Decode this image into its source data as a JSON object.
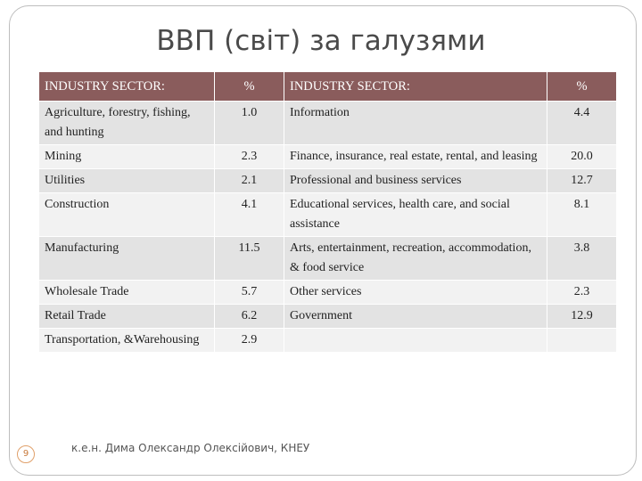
{
  "title": "ВВП (світ) за галузями",
  "table": {
    "headers": [
      "INDUSTRY SECTOR:",
      "%",
      "INDUSTRY SECTOR:",
      "%"
    ],
    "rows": [
      [
        "Agriculture, forestry, fishing, and hunting",
        "1.0",
        "Information",
        "4.4"
      ],
      [
        "Mining",
        "2.3",
        "Finance, insurance, real estate, rental, and leasing",
        "20.0"
      ],
      [
        "Utilities",
        "2.1",
        "Professional and business services",
        "12.7"
      ],
      [
        "Construction",
        "4.1",
        "Educational services, health care, and social assistance",
        "8.1"
      ],
      [
        "Manufacturing",
        "11.5",
        "Arts, entertainment, recreation, accommodation, & food service",
        "3.8"
      ],
      [
        "Wholesale Trade",
        "5.7",
        "Other services",
        "2.3"
      ],
      [
        "Retail Trade",
        "6.2",
        "Government",
        "12.9"
      ],
      [
        "Transportation, &Warehousing",
        "2.9",
        "",
        ""
      ]
    ]
  },
  "footer": {
    "author": "к.е.н. Дима Олександр Олексійович, КНЕУ",
    "page_number": "9"
  }
}
